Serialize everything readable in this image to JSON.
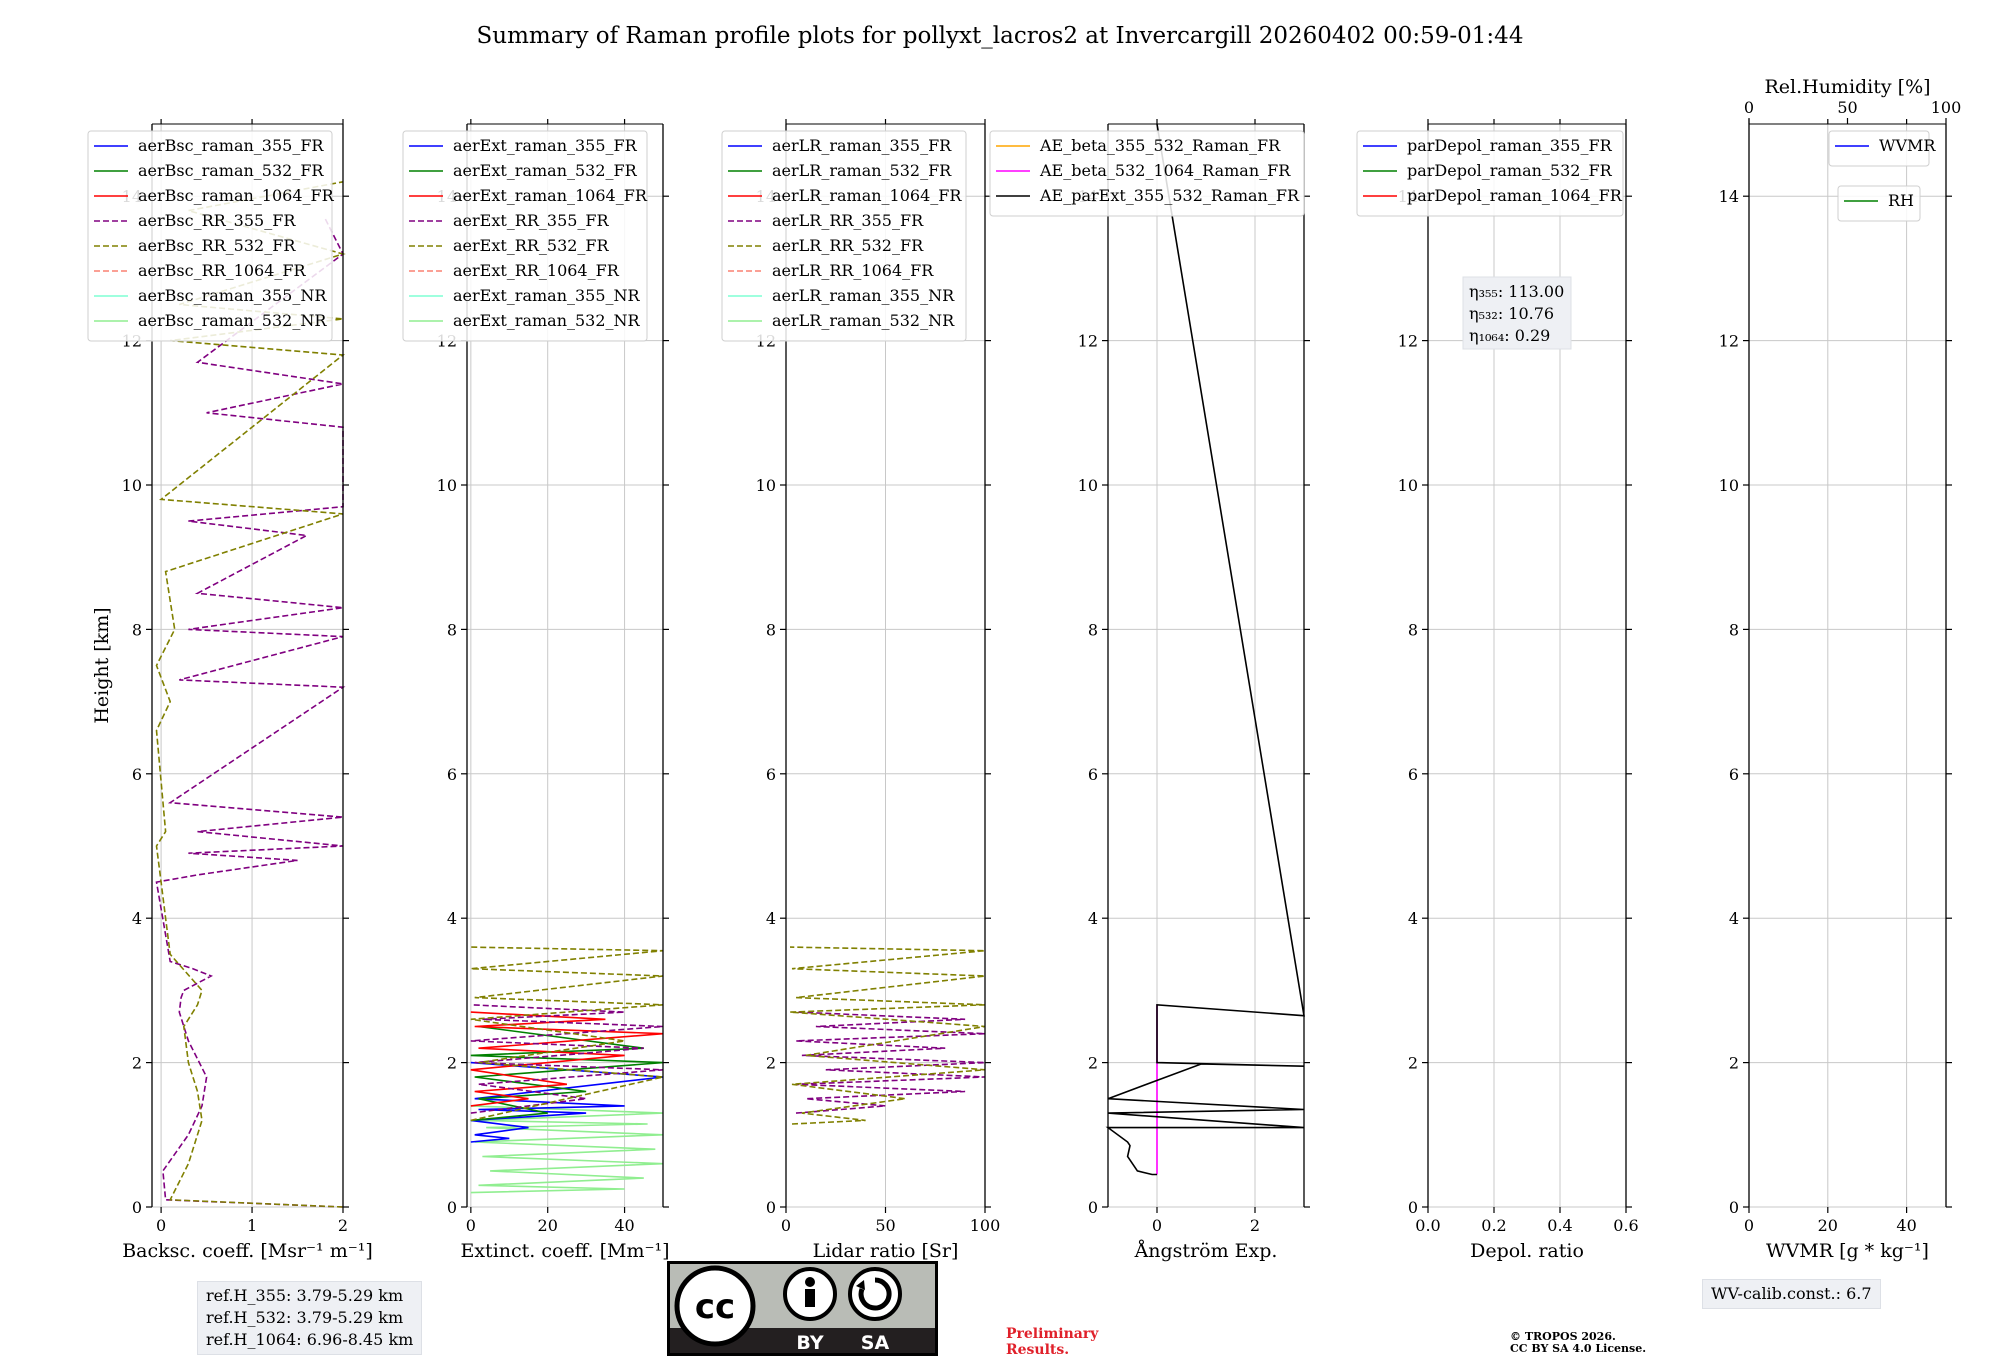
{
  "title": "Summary of Raman profile plots for pollyxt_lacros2 at Invercargill 20260402 00:59-01:44",
  "chart_data": [
    {
      "type": "line",
      "id": "bsc",
      "xlabel": "Backsc. coeff. [Msr⁻¹ m⁻¹]",
      "ylabel": "Height [km]",
      "xlim": [
        -0.1,
        2
      ],
      "ylim": [
        0,
        15
      ],
      "xticks": [
        0,
        1,
        2
      ],
      "xtick_labels": [
        "0",
        "1",
        "2"
      ],
      "yticks": [
        0,
        2,
        4,
        6,
        8,
        10,
        12,
        14
      ],
      "ytick_labels": [
        "0",
        "2",
        "4",
        "6",
        "8",
        "10",
        "12",
        "14"
      ],
      "legend": [
        "aerBsc_raman_355_FR",
        "aerBsc_raman_532_FR",
        "aerBsc_raman_1064_FR",
        "aerBsc_RR_355_FR",
        "aerBsc_RR_532_FR",
        "aerBsc_RR_1064_FR",
        "aerBsc_raman_355_NR",
        "aerBsc_raman_532_NR"
      ],
      "legend_location": "upper-left",
      "series": [
        {
          "name": "aerBsc_RR_355_FR",
          "style": "dashed",
          "color": "#800080",
          "x": [
            2.0,
            0.05,
            0.02,
            0.3,
            0.45,
            0.5,
            0.3,
            0.2,
            0.22,
            0.25,
            0.4,
            0.55,
            0.35,
            0.1,
            -0.05,
            0.4,
            1.5,
            0.3,
            2.0,
            0.4,
            2.0,
            0.1,
            2.0,
            0.2,
            2.0,
            0.3,
            2.0,
            0.4,
            1.6,
            0.3,
            2.0,
            2.0,
            0.5,
            2.0,
            0.4,
            2.0,
            1.8
          ],
          "y": [
            0.0,
            0.1,
            0.5,
            1.0,
            1.4,
            1.8,
            2.3,
            2.7,
            2.9,
            3.0,
            3.1,
            3.2,
            3.3,
            3.4,
            4.5,
            4.6,
            4.8,
            4.9,
            5.0,
            5.2,
            5.4,
            5.6,
            7.2,
            7.3,
            7.9,
            8.0,
            8.3,
            8.5,
            9.3,
            9.5,
            9.7,
            10.8,
            11.0,
            11.4,
            11.7,
            13.2,
            13.7
          ]
        },
        {
          "name": "aerBsc_RR_532_FR",
          "style": "dashed",
          "color": "#808000",
          "x": [
            2.0,
            0.1,
            0.3,
            0.45,
            0.4,
            0.3,
            0.25,
            0.4,
            0.45,
            0.1,
            0.05,
            0.0,
            -0.05,
            0.05,
            -0.05,
            0.1,
            -0.05,
            0.15,
            0.05,
            2.0,
            0.0,
            2.0,
            0.1,
            2.0,
            0.2,
            2.0,
            0.3,
            2.0
          ],
          "y": [
            0.0,
            0.1,
            0.6,
            1.2,
            1.6,
            2.0,
            2.5,
            2.8,
            3.0,
            3.5,
            4.0,
            4.5,
            5.0,
            5.2,
            6.6,
            7.0,
            7.5,
            8.0,
            8.8,
            9.6,
            9.8,
            11.8,
            12.0,
            12.3,
            12.5,
            13.2,
            13.8,
            14.2
          ]
        }
      ]
    },
    {
      "type": "line",
      "id": "ext",
      "xlabel": "Extinct. coeff. [Mm⁻¹]",
      "ylabel": "",
      "xlim": [
        -1,
        50
      ],
      "ylim": [
        0,
        15
      ],
      "xticks": [
        0,
        20,
        40
      ],
      "xtick_labels": [
        "0",
        "20",
        "40"
      ],
      "yticks": [
        0,
        2,
        4,
        6,
        8,
        10,
        12,
        14
      ],
      "ytick_labels": [
        "0",
        "2",
        "4",
        "6",
        "8",
        "10",
        "12",
        "14"
      ],
      "legend": [
        "aerExt_raman_355_FR",
        "aerExt_raman_532_FR",
        "aerExt_raman_1064_FR",
        "aerExt_RR_355_FR",
        "aerExt_RR_532_FR",
        "aerExt_RR_1064_FR",
        "aerExt_raman_355_NR",
        "aerExt_raman_532_NR"
      ],
      "legend_location": "upper-left",
      "series": [
        {
          "name": "aerExt_raman_532_NR",
          "style": "solid",
          "color": "#90ee90",
          "x": [
            0,
            40,
            2,
            45,
            5,
            50,
            3,
            48,
            1,
            50,
            4,
            46,
            2,
            50,
            0
          ],
          "y": [
            0.2,
            0.25,
            0.3,
            0.4,
            0.5,
            0.6,
            0.7,
            0.8,
            0.9,
            1.0,
            1.1,
            1.15,
            1.2,
            1.3,
            1.4
          ]
        },
        {
          "name": "aerExt_raman_355_FR",
          "style": "solid",
          "color": "#0000ff",
          "x": [
            0,
            10,
            1,
            15,
            0,
            30,
            2,
            40,
            1,
            50,
            0
          ],
          "y": [
            0.9,
            0.95,
            1.0,
            1.1,
            1.2,
            1.3,
            1.35,
            1.4,
            1.5,
            1.8,
            2.0
          ]
        },
        {
          "name": "aerExt_raman_532_FR",
          "style": "solid",
          "color": "#008000",
          "x": [
            0,
            20,
            2,
            30,
            1,
            50,
            0,
            45,
            2
          ],
          "y": [
            1.2,
            1.3,
            1.5,
            1.6,
            1.8,
            2.0,
            2.1,
            2.2,
            2.5
          ]
        },
        {
          "name": "aerExt_raman_1064_FR",
          "style": "solid",
          "color": "#ff0000",
          "x": [
            0,
            15,
            1,
            25,
            0,
            40,
            2,
            50,
            1,
            35,
            0
          ],
          "y": [
            1.4,
            1.5,
            1.6,
            1.7,
            1.9,
            2.1,
            2.2,
            2.4,
            2.5,
            2.6,
            2.7
          ]
        },
        {
          "name": "aerExt_RR_355_FR",
          "style": "dashed",
          "color": "#800080",
          "x": [
            0,
            30,
            2,
            50,
            1,
            45,
            0,
            50,
            3,
            40,
            0
          ],
          "y": [
            1.3,
            1.5,
            1.7,
            1.9,
            2.0,
            2.2,
            2.3,
            2.5,
            2.6,
            2.7,
            2.8
          ]
        },
        {
          "name": "aerExt_RR_532_FR",
          "style": "dashed",
          "color": "#808000",
          "x": [
            0,
            50,
            2,
            40,
            0,
            50,
            1,
            50,
            0,
            50,
            0
          ],
          "y": [
            1.2,
            1.8,
            2.0,
            2.3,
            2.6,
            2.8,
            2.9,
            3.2,
            3.3,
            3.55,
            3.6
          ]
        }
      ]
    },
    {
      "type": "line",
      "id": "lr",
      "xlabel": "Lidar ratio [Sr]",
      "ylabel": "",
      "xlim": [
        0,
        100
      ],
      "ylim": [
        0,
        15
      ],
      "xticks": [
        0,
        50,
        100
      ],
      "xtick_labels": [
        "0",
        "50",
        "100"
      ],
      "yticks": [
        0,
        2,
        4,
        6,
        8,
        10,
        12,
        14
      ],
      "ytick_labels": [
        "0",
        "2",
        "4",
        "6",
        "8",
        "10",
        "12",
        "14"
      ],
      "legend": [
        "aerLR_raman_355_FR",
        "aerLR_raman_532_FR",
        "aerLR_raman_1064_FR",
        "aerLR_RR_355_FR",
        "aerLR_RR_532_FR",
        "aerLR_RR_1064_FR",
        "aerLR_raman_355_NR",
        "aerLR_raman_532_NR"
      ],
      "legend_location": "upper-left",
      "series": [
        {
          "name": "aerLR_RR_355_FR",
          "style": "dashed",
          "color": "#800080",
          "x": [
            5,
            50,
            10,
            90,
            5,
            100,
            20,
            100,
            8,
            80,
            5,
            100,
            15,
            90,
            5
          ],
          "y": [
            1.3,
            1.4,
            1.5,
            1.6,
            1.7,
            1.8,
            1.9,
            2.0,
            2.1,
            2.2,
            2.3,
            2.4,
            2.5,
            2.6,
            2.7
          ]
        },
        {
          "name": "aerLR_RR_532_FR",
          "style": "dashed",
          "color": "#808000",
          "x": [
            3,
            40,
            8,
            60,
            3,
            100,
            10,
            100,
            2,
            100,
            5,
            100,
            3,
            100,
            2
          ],
          "y": [
            1.15,
            1.2,
            1.3,
            1.5,
            1.7,
            1.9,
            2.1,
            2.5,
            2.7,
            2.8,
            2.9,
            3.2,
            3.3,
            3.55,
            3.6
          ]
        }
      ]
    },
    {
      "type": "line",
      "id": "ae",
      "xlabel": "Ångström Exp.",
      "ylabel": "",
      "xlim": [
        -1,
        3
      ],
      "ylim": [
        0,
        15
      ],
      "xticks": [
        0,
        2
      ],
      "xtick_labels": [
        "0",
        "2"
      ],
      "yticks": [
        0,
        2,
        4,
        6,
        8,
        10,
        12,
        14
      ],
      "ytick_labels": [
        "0",
        "2",
        "4",
        "6",
        "8",
        "10",
        "12",
        "14"
      ],
      "legend": [
        "AE_beta_355_532_Raman_FR",
        "AE_beta_532_1064_Raman_FR",
        "AE_parExt_355_532_Raman_FR"
      ],
      "legend_location": "upper-left",
      "series": [
        {
          "name": "AE_beta_532_1064_Raman_FR",
          "style": "solid",
          "color": "#ff00ff",
          "x": [
            0,
            0,
            0
          ],
          "y": [
            0.45,
            1.5,
            2.8
          ]
        },
        {
          "name": "AE_parExt_355_532_Raman_FR",
          "style": "solid",
          "color": "#000000",
          "x": [
            0,
            -0.1,
            -0.4,
            -0.6,
            -0.55,
            -0.6,
            -1,
            3,
            -1,
            3,
            -1,
            0.9,
            3,
            0,
            0,
            3,
            0
          ],
          "y": [
            0.45,
            0.45,
            0.5,
            0.7,
            0.85,
            0.9,
            1.1,
            1.1,
            1.3,
            1.35,
            1.5,
            1.98,
            1.95,
            2.0,
            2.8,
            2.65,
            15
          ]
        }
      ]
    },
    {
      "type": "line",
      "id": "depol",
      "xlabel": "Depol. ratio",
      "ylabel": "",
      "xlim": [
        0,
        0.6
      ],
      "ylim": [
        0,
        15
      ],
      "xticks": [
        0,
        0.2,
        0.4,
        0.6
      ],
      "xtick_labels": [
        "0.0",
        "0.2",
        "0.4",
        "0.6"
      ],
      "yticks": [
        0,
        2,
        4,
        6,
        8,
        10,
        12,
        14
      ],
      "ytick_labels": [
        "0",
        "2",
        "4",
        "6",
        "8",
        "10",
        "12",
        "14"
      ],
      "legend": [
        "parDepol_raman_355_FR",
        "parDepol_raman_532_FR",
        "parDepol_raman_1064_FR"
      ],
      "legend_location": "upper-left",
      "annotation": [
        "η₃₅₅: 113.00",
        "η₅₃₂: 10.76",
        "η₁₀₆₄: 0.29"
      ],
      "series": []
    },
    {
      "type": "line",
      "id": "wv",
      "xlabel": "WVMR [g * kg⁻¹]",
      "ylabel": "",
      "xlim": [
        0,
        50
      ],
      "ylim": [
        0,
        15
      ],
      "xticks": [
        0,
        20,
        40
      ],
      "xtick_labels": [
        "0",
        "20",
        "40"
      ],
      "yticks": [
        0,
        2,
        4,
        6,
        8,
        10,
        12,
        14
      ],
      "ytick_labels": [
        "0",
        "2",
        "4",
        "6",
        "8",
        "10",
        "12",
        "14"
      ],
      "top_axis_label": "Rel.Humidity [%]",
      "top_xticks": [
        0,
        50,
        100
      ],
      "top_xtick_labels": [
        "0",
        "50",
        "100"
      ],
      "legend": [
        "WVMR"
      ],
      "legend2": [
        "RH"
      ],
      "series": []
    }
  ],
  "legend_colors": {
    "blue": "#0000ff",
    "green": "#008000",
    "red": "#ff0000",
    "purple": "#800080",
    "olive": "#808000",
    "salmon": "#fa8072",
    "cyan": "#7fffd4",
    "lightgreen": "#90ee90",
    "orange": "#ffa500",
    "magenta": "#ff00ff",
    "black": "#000000"
  },
  "ref_box": [
    "ref.H_355: 3.79-5.29 km",
    "ref.H_532: 3.79-5.29 km",
    "ref.H_1064: 6.96-8.45 km"
  ],
  "wv_calib": "WV-calib.const.: 6.7",
  "license_badge": {
    "cc": "cc",
    "by": "BY",
    "sa": "SA"
  },
  "preliminary": [
    "Preliminary",
    "Results."
  ],
  "copyright": [
    "© TROPOS 2026.",
    "CC BY SA 4.0 License."
  ]
}
